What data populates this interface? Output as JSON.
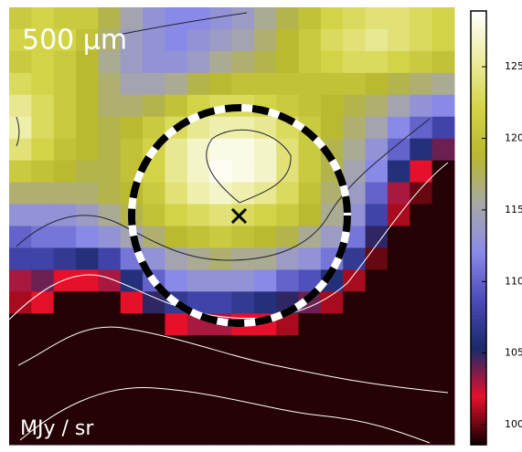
{
  "chart_data": {
    "type": "heatmap",
    "title": "500 μm",
    "colorbar_label": "MJy / sr",
    "zlim": [
      98.6,
      128.9
    ],
    "zticks": [
      100,
      105,
      110,
      115,
      120,
      125
    ],
    "colormap": [
      "#0a0000",
      "#e8102a",
      "#1a2a6a",
      "#4a4ab8",
      "#8a8ae8",
      "#a8a8a8",
      "#b8b830",
      "#d4d448",
      "#ececa0",
      "#ffffff"
    ],
    "z": [
      [
        121,
        122,
        121,
        121,
        118,
        115,
        113,
        112,
        112,
        113,
        114,
        116,
        118,
        120,
        122,
        123,
        124,
        124,
        123,
        122
      ],
      [
        122,
        122,
        122,
        120,
        117,
        114,
        113,
        112,
        113,
        114,
        115,
        117,
        119,
        121,
        123,
        124,
        125,
        124,
        123,
        122
      ],
      [
        121,
        122,
        121,
        119,
        116,
        114,
        113,
        113,
        114,
        116,
        117,
        118,
        119,
        121,
        122,
        123,
        123,
        122,
        121,
        120
      ],
      [
        123,
        122,
        121,
        119,
        117,
        115,
        115,
        116,
        118,
        119,
        120,
        120,
        120,
        120,
        120,
        120,
        119,
        118,
        117,
        116
      ],
      [
        125,
        123,
        121,
        119,
        117,
        117,
        118,
        120,
        122,
        123,
        123,
        122,
        121,
        120,
        119,
        118,
        117,
        115,
        113,
        112
      ],
      [
        126,
        123,
        121,
        119,
        118,
        119,
        121,
        123,
        125,
        126,
        126,
        125,
        123,
        121,
        119,
        117,
        115,
        112,
        110,
        108
      ],
      [
        124,
        122,
        120,
        119,
        118,
        120,
        122,
        125,
        127,
        128,
        128,
        127,
        124,
        121,
        118,
        116,
        113,
        110,
        106,
        104
      ],
      [
        121,
        120,
        119,
        118,
        118,
        120,
        122,
        125,
        127,
        128.5,
        128,
        127,
        124,
        121,
        118,
        115,
        112,
        106,
        102,
        99
      ],
      [
        117,
        117,
        117,
        117,
        118,
        119,
        121,
        124,
        126,
        127,
        126,
        125,
        123,
        120,
        117,
        114,
        110,
        103,
        100,
        99
      ],
      [
        113,
        113,
        113,
        114,
        116,
        118,
        120,
        122,
        123,
        124,
        123,
        122,
        121,
        119,
        116,
        113,
        108,
        101,
        99,
        99
      ],
      [
        110,
        111,
        111,
        112,
        113,
        115,
        117,
        119,
        120,
        121,
        120,
        119,
        118,
        116,
        114,
        111,
        105,
        99,
        99,
        99
      ],
      [
        108,
        108,
        107,
        106,
        108,
        111,
        113,
        115,
        116,
        117,
        116,
        116,
        114,
        113,
        111,
        107,
        100,
        99,
        99,
        99
      ],
      [
        103,
        104,
        102,
        102,
        103,
        106,
        110,
        112,
        113,
        113,
        113,
        112,
        110,
        109,
        106,
        101,
        99,
        99,
        99,
        99
      ],
      [
        101,
        102,
        99,
        99,
        99,
        102,
        105,
        107,
        108,
        108,
        107,
        106,
        105,
        104,
        101,
        99,
        99,
        99,
        99,
        99
      ],
      [
        99,
        99,
        99,
        99,
        99,
        99,
        99,
        102,
        103,
        103,
        102,
        102,
        101,
        99,
        99,
        99,
        99,
        99,
        99,
        99
      ],
      [
        99,
        99,
        99,
        99,
        99,
        99,
        99,
        99,
        99,
        99,
        99,
        99,
        99,
        99,
        99,
        99,
        99,
        99,
        99,
        99
      ],
      [
        99,
        99,
        99,
        99,
        99,
        99,
        99,
        99,
        99,
        99,
        99,
        99,
        99,
        99,
        99,
        99,
        99,
        99,
        99,
        99
      ],
      [
        99,
        99,
        99,
        99,
        99,
        99,
        99,
        99,
        99,
        99,
        99,
        99,
        99,
        99,
        99,
        99,
        99,
        99,
        99,
        99
      ],
      [
        99,
        99,
        99,
        99,
        99,
        99,
        99,
        99,
        99,
        99,
        99,
        99,
        99,
        99,
        99,
        99,
        99,
        99,
        99,
        99
      ],
      [
        99,
        99,
        99,
        99,
        99,
        99,
        99,
        99,
        99,
        99,
        99,
        99,
        99,
        99,
        99,
        99,
        99,
        99,
        99,
        99
      ]
    ]
  }
}
